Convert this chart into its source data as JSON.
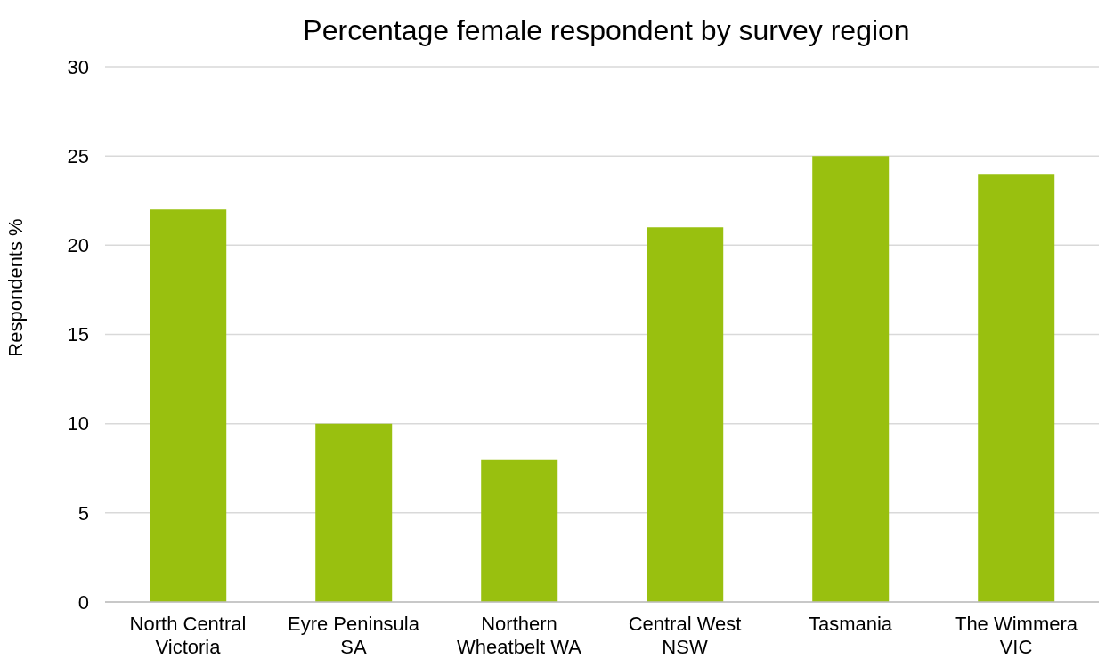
{
  "chart_data": {
    "type": "bar",
    "title": "Percentage female respondent by survey region",
    "ylabel": "Respondents %",
    "categories": [
      "North Central Victoria",
      "Eyre Peninsula SA",
      "Northern Wheatbelt WA",
      "Central West NSW",
      "Tasmania",
      "The Wimmera VIC"
    ],
    "values": [
      22,
      10,
      8,
      21,
      25,
      24
    ],
    "color": "#99c00f",
    "ylim": [
      0,
      30
    ],
    "yticks": [
      0,
      5,
      10,
      15,
      20,
      25,
      30
    ],
    "grid": "y"
  }
}
